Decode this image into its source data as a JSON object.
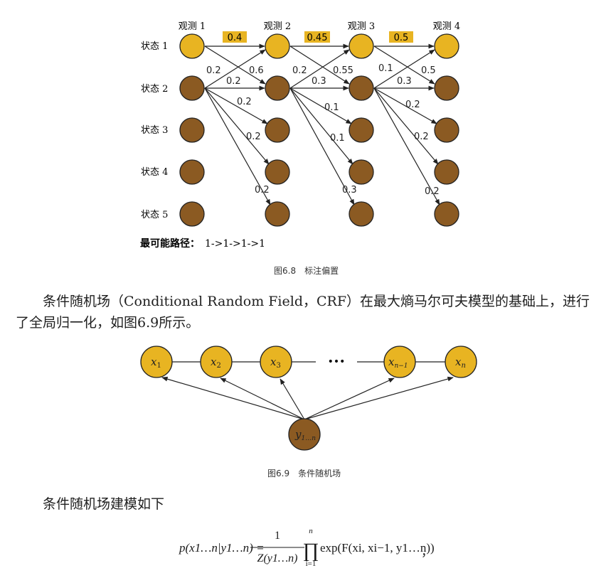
{
  "figure_6_8": {
    "observations": [
      "观测 1",
      "观测 2",
      "观测 3",
      "观测 4"
    ],
    "states": [
      "状态 1",
      "状态 2",
      "状态 3",
      "状态 4",
      "状态 5"
    ],
    "top_probs": [
      "0.4",
      "0.45",
      "0.5"
    ],
    "edge_labels": {
      "g1": [
        "0.2",
        "0.6",
        "0.2",
        "0.2",
        "0.2",
        "0.2"
      ],
      "g2": [
        "0.2",
        "0.55",
        "0.3",
        "0.1",
        "0.1",
        "0.3"
      ],
      "g3": [
        "0.1",
        "0.5",
        "0.3",
        "0.2",
        "0.2",
        "0.2"
      ]
    },
    "path_label": "最可能路径：",
    "path_value": "1->1->1->1",
    "caption": "图6.8　标注偏置"
  },
  "paragraph_1": "条件随机场（Conditional Random Field，CRF）在最大熵马尔可夫模型的基础上，进行了全局归一化，如图6.9所示。",
  "figure_6_9": {
    "x_nodes": [
      {
        "base": "x",
        "sub": "1"
      },
      {
        "base": "x",
        "sub": "2"
      },
      {
        "base": "x",
        "sub": "3"
      },
      {
        "base": "x",
        "sub": "n−1"
      },
      {
        "base": "x",
        "sub": "n"
      }
    ],
    "ellipsis": "•••",
    "y_node": {
      "base": "y",
      "sub": "1…n"
    },
    "caption": "图6.9　条件随机场"
  },
  "paragraph_2": "条件随机场建模如下",
  "formula": {
    "lhs": "p(x1…n|y1…n) =",
    "numerator": "1",
    "denominator": "Z(y1…n)",
    "product_upper": "n",
    "product_lower": "i=1",
    "product": "∏",
    "body": "exp(F(xi, xi−1, y1…n))",
    "trailing": "，"
  },
  "colors": {
    "gold": "#e8b422",
    "brown": "#8b5a22",
    "highlight": "#e8b422"
  }
}
